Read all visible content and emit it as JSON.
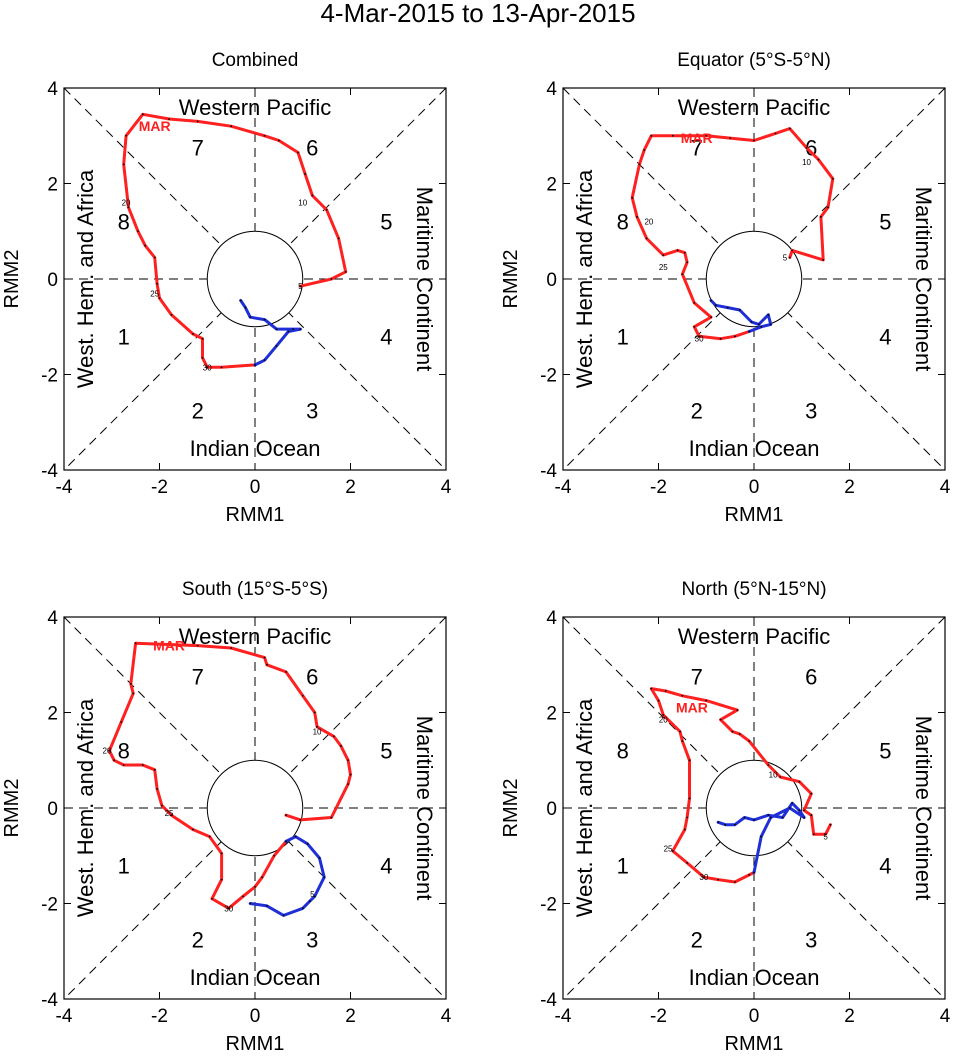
{
  "chart_data": {
    "type": "line",
    "title": "4-Mar-2015 to 13-Apr-2015",
    "xlabel": "RMM1",
    "ylabel": "RMM2",
    "xlim": [
      -4,
      4
    ],
    "ylim": [
      -4,
      4
    ],
    "ticks": [
      "-4",
      "-2",
      "0",
      "2",
      "4"
    ],
    "regions": {
      "top": "Western Pacific",
      "bottom": "Indian Ocean",
      "left": "West. Hem. and Africa",
      "right": "Maritime Continent"
    },
    "phases": [
      "1",
      "2",
      "3",
      "4",
      "5",
      "6",
      "7",
      "8"
    ],
    "month_labels": {
      "mar": "MAR"
    },
    "colors": {
      "mar": "#ff2020",
      "apr": "#1f2fd6",
      "axis": "#000000"
    },
    "panels": [
      {
        "name": "Combined",
        "day_labels": [
          {
            "text": "5",
            "x": 0.95,
            "y": -0.15
          },
          {
            "text": "10",
            "x": 1.0,
            "y": 1.6
          },
          {
            "text": "20",
            "x": -2.7,
            "y": 1.6
          },
          {
            "text": "25",
            "x": -2.1,
            "y": -0.3
          },
          {
            "text": "30",
            "x": -1.0,
            "y": -1.85
          }
        ],
        "month_label_pos": {
          "x": -2.1,
          "y": 3.2
        },
        "series": [
          {
            "name": "Mar",
            "color": "mar",
            "points": [
              [
                0.95,
                -0.15
              ],
              [
                1.6,
                0.0
              ],
              [
                1.9,
                0.15
              ],
              [
                1.75,
                0.85
              ],
              [
                1.5,
                1.45
              ],
              [
                1.2,
                1.75
              ],
              [
                1.05,
                2.2
              ],
              [
                0.9,
                2.65
              ],
              [
                0.5,
                2.9
              ],
              [
                0.2,
                3.0
              ],
              [
                -0.5,
                3.2
              ],
              [
                -1.2,
                3.3
              ],
              [
                -1.8,
                3.35
              ],
              [
                -2.35,
                3.45
              ],
              [
                -2.7,
                3.0
              ],
              [
                -2.75,
                2.4
              ],
              [
                -2.65,
                1.5
              ],
              [
                -2.45,
                1.0
              ],
              [
                -2.3,
                0.7
              ],
              [
                -2.1,
                0.45
              ],
              [
                -2.05,
                -0.1
              ],
              [
                -2.0,
                -0.4
              ],
              [
                -1.75,
                -0.75
              ],
              [
                -1.3,
                -1.15
              ],
              [
                -1.1,
                -1.25
              ],
              [
                -1.1,
                -1.65
              ],
              [
                -1.0,
                -1.85
              ],
              [
                -0.7,
                -1.85
              ],
              [
                0.0,
                -1.8
              ],
              [
                0.0,
                -1.8
              ]
            ]
          },
          {
            "name": "Apr",
            "color": "apr",
            "points": [
              [
                0.0,
                -1.8
              ],
              [
                0.2,
                -1.7
              ],
              [
                0.45,
                -1.4
              ],
              [
                0.7,
                -1.1
              ],
              [
                0.95,
                -1.05
              ],
              [
                0.8,
                -1.05
              ],
              [
                0.45,
                -1.05
              ],
              [
                0.2,
                -0.85
              ],
              [
                -0.1,
                -0.8
              ],
              [
                -0.2,
                -0.6
              ],
              [
                -0.3,
                -0.45
              ]
            ]
          }
        ]
      },
      {
        "name": "Equator (5°S-5°N)",
        "day_labels": [
          {
            "text": "5",
            "x": 0.65,
            "y": 0.45
          },
          {
            "text": "10",
            "x": 1.1,
            "y": 2.45
          },
          {
            "text": "20",
            "x": -2.2,
            "y": 1.2
          },
          {
            "text": "25",
            "x": -1.9,
            "y": 0.25
          },
          {
            "text": "30",
            "x": -1.15,
            "y": -1.25
          }
        ],
        "month_label_pos": {
          "x": -1.2,
          "y": 2.95
        },
        "series": [
          {
            "name": "Mar",
            "color": "mar",
            "points": [
              [
                0.75,
                0.45
              ],
              [
                0.8,
                0.6
              ],
              [
                1.45,
                0.4
              ],
              [
                1.4,
                1.3
              ],
              [
                1.55,
                1.5
              ],
              [
                1.65,
                2.1
              ],
              [
                1.35,
                2.5
              ],
              [
                1.1,
                2.75
              ],
              [
                0.75,
                3.15
              ],
              [
                0.45,
                3.05
              ],
              [
                0.0,
                2.9
              ],
              [
                -0.5,
                2.95
              ],
              [
                -1.0,
                3.0
              ],
              [
                -1.7,
                3.0
              ],
              [
                -2.15,
                3.0
              ],
              [
                -2.3,
                2.7
              ],
              [
                -2.4,
                2.4
              ],
              [
                -2.55,
                1.7
              ],
              [
                -2.45,
                1.3
              ],
              [
                -2.25,
                0.85
              ],
              [
                -1.9,
                0.5
              ],
              [
                -1.6,
                0.6
              ],
              [
                -1.45,
                0.55
              ],
              [
                -1.4,
                0.35
              ],
              [
                -1.5,
                0.1
              ],
              [
                -1.25,
                -0.5
              ],
              [
                -0.9,
                -0.8
              ],
              [
                -1.25,
                -1.0
              ],
              [
                -1.15,
                -1.2
              ],
              [
                -0.7,
                -1.25
              ],
              [
                -0.4,
                -1.2
              ],
              [
                -0.1,
                -1.1
              ]
            ]
          },
          {
            "name": "Apr",
            "color": "apr",
            "points": [
              [
                -0.1,
                -1.1
              ],
              [
                0.15,
                -1.0
              ],
              [
                0.35,
                -0.95
              ],
              [
                0.3,
                -0.75
              ],
              [
                0.1,
                -0.95
              ],
              [
                -0.05,
                -0.9
              ],
              [
                -0.3,
                -0.65
              ],
              [
                -0.55,
                -0.6
              ],
              [
                -0.8,
                -0.55
              ],
              [
                -0.9,
                -0.45
              ]
            ]
          }
        ]
      },
      {
        "name": "South (15°S-5°S)",
        "day_labels": [
          {
            "text": "5",
            "x": 1.2,
            "y": -1.8
          },
          {
            "text": "10",
            "x": 1.3,
            "y": 1.6
          },
          {
            "text": "20",
            "x": -3.1,
            "y": 1.2
          },
          {
            "text": "25",
            "x": -1.8,
            "y": -0.1
          },
          {
            "text": "30",
            "x": -0.55,
            "y": -2.1
          }
        ],
        "month_label_pos": {
          "x": -1.8,
          "y": 3.4
        },
        "series": [
          {
            "name": "Mar",
            "color": "mar",
            "points": [
              [
                0.65,
                -0.15
              ],
              [
                0.95,
                -0.25
              ],
              [
                1.6,
                -0.2
              ],
              [
                1.95,
                0.5
              ],
              [
                2.0,
                0.7
              ],
              [
                1.95,
                1.0
              ],
              [
                1.8,
                1.3
              ],
              [
                1.65,
                1.5
              ],
              [
                1.3,
                1.7
              ],
              [
                1.25,
                2.0
              ],
              [
                1.0,
                2.35
              ],
              [
                0.65,
                2.85
              ],
              [
                0.25,
                3.0
              ],
              [
                0.2,
                3.15
              ],
              [
                -0.5,
                3.35
              ],
              [
                -1.2,
                3.4
              ],
              [
                -2.5,
                3.45
              ],
              [
                -2.6,
                2.6
              ],
              [
                -2.55,
                2.4
              ],
              [
                -2.8,
                1.8
              ],
              [
                -3.05,
                1.2
              ],
              [
                -2.95,
                1.0
              ],
              [
                -2.75,
                0.9
              ],
              [
                -2.35,
                0.9
              ],
              [
                -2.1,
                0.8
              ],
              [
                -2.05,
                0.4
              ],
              [
                -1.95,
                0.05
              ],
              [
                -1.75,
                -0.15
              ],
              [
                -1.3,
                -0.45
              ],
              [
                -0.95,
                -0.6
              ],
              [
                -0.7,
                -0.95
              ],
              [
                -0.7,
                -1.5
              ],
              [
                -0.9,
                -1.9
              ],
              [
                -0.55,
                -2.1
              ],
              [
                -0.25,
                -1.85
              ],
              [
                0.0,
                -1.65
              ],
              [
                0.15,
                -1.45
              ],
              [
                0.4,
                -1.0
              ],
              [
                0.65,
                -0.7
              ]
            ]
          },
          {
            "name": "Apr",
            "color": "apr",
            "points": [
              [
                0.65,
                -0.7
              ],
              [
                0.85,
                -0.6
              ],
              [
                1.1,
                -0.75
              ],
              [
                1.35,
                -1.05
              ],
              [
                1.45,
                -1.45
              ],
              [
                1.25,
                -1.85
              ],
              [
                1.15,
                -1.95
              ],
              [
                1.0,
                -2.1
              ],
              [
                0.6,
                -2.25
              ],
              [
                0.25,
                -2.05
              ],
              [
                -0.1,
                -2.0
              ]
            ]
          }
        ]
      },
      {
        "name": "North (5°N-15°N)",
        "day_labels": [
          {
            "text": "5",
            "x": 1.5,
            "y": -0.6
          },
          {
            "text": "10",
            "x": 0.4,
            "y": 0.7
          },
          {
            "text": "20",
            "x": -1.9,
            "y": 1.85
          },
          {
            "text": "25",
            "x": -1.8,
            "y": -0.85
          },
          {
            "text": "30",
            "x": -1.05,
            "y": -1.45
          }
        ],
        "month_label_pos": {
          "x": -1.3,
          "y": 2.1
        },
        "series": [
          {
            "name": "Mar",
            "color": "mar",
            "points": [
              [
                1.6,
                -0.35
              ],
              [
                1.5,
                -0.55
              ],
              [
                1.25,
                -0.55
              ],
              [
                1.2,
                -0.15
              ],
              [
                1.05,
                -0.05
              ],
              [
                1.2,
                0.3
              ],
              [
                0.95,
                0.55
              ],
              [
                0.55,
                0.65
              ],
              [
                0.3,
                0.9
              ],
              [
                -0.1,
                1.4
              ],
              [
                -0.3,
                1.55
              ],
              [
                -0.45,
                1.6
              ],
              [
                -0.7,
                1.85
              ],
              [
                -0.35,
                2.05
              ],
              [
                -1.0,
                2.25
              ],
              [
                -1.5,
                2.35
              ],
              [
                -1.85,
                2.45
              ],
              [
                -2.15,
                2.5
              ],
              [
                -2.0,
                2.25
              ],
              [
                -1.9,
                1.95
              ],
              [
                -1.55,
                1.6
              ],
              [
                -1.5,
                1.4
              ],
              [
                -1.35,
                1.0
              ],
              [
                -1.35,
                0.2
              ],
              [
                -1.4,
                -0.2
              ],
              [
                -1.45,
                -0.45
              ],
              [
                -1.7,
                -0.9
              ],
              [
                -1.4,
                -1.15
              ],
              [
                -1.05,
                -1.45
              ],
              [
                -0.75,
                -1.5
              ],
              [
                -0.4,
                -1.55
              ],
              [
                -0.1,
                -1.4
              ],
              [
                0.0,
                -1.35
              ]
            ]
          },
          {
            "name": "Apr",
            "color": "apr",
            "points": [
              [
                0.0,
                -1.35
              ],
              [
                0.15,
                -0.6
              ],
              [
                0.35,
                -0.2
              ],
              [
                0.75,
                0.0
              ],
              [
                1.05,
                -0.2
              ],
              [
                0.95,
                -0.05
              ],
              [
                0.8,
                0.1
              ],
              [
                0.6,
                -0.2
              ],
              [
                0.3,
                -0.15
              ],
              [
                0.0,
                -0.25
              ],
              [
                -0.2,
                -0.2
              ],
              [
                -0.4,
                -0.35
              ],
              [
                -0.6,
                -0.35
              ],
              [
                -0.75,
                -0.3
              ]
            ]
          }
        ]
      }
    ]
  }
}
